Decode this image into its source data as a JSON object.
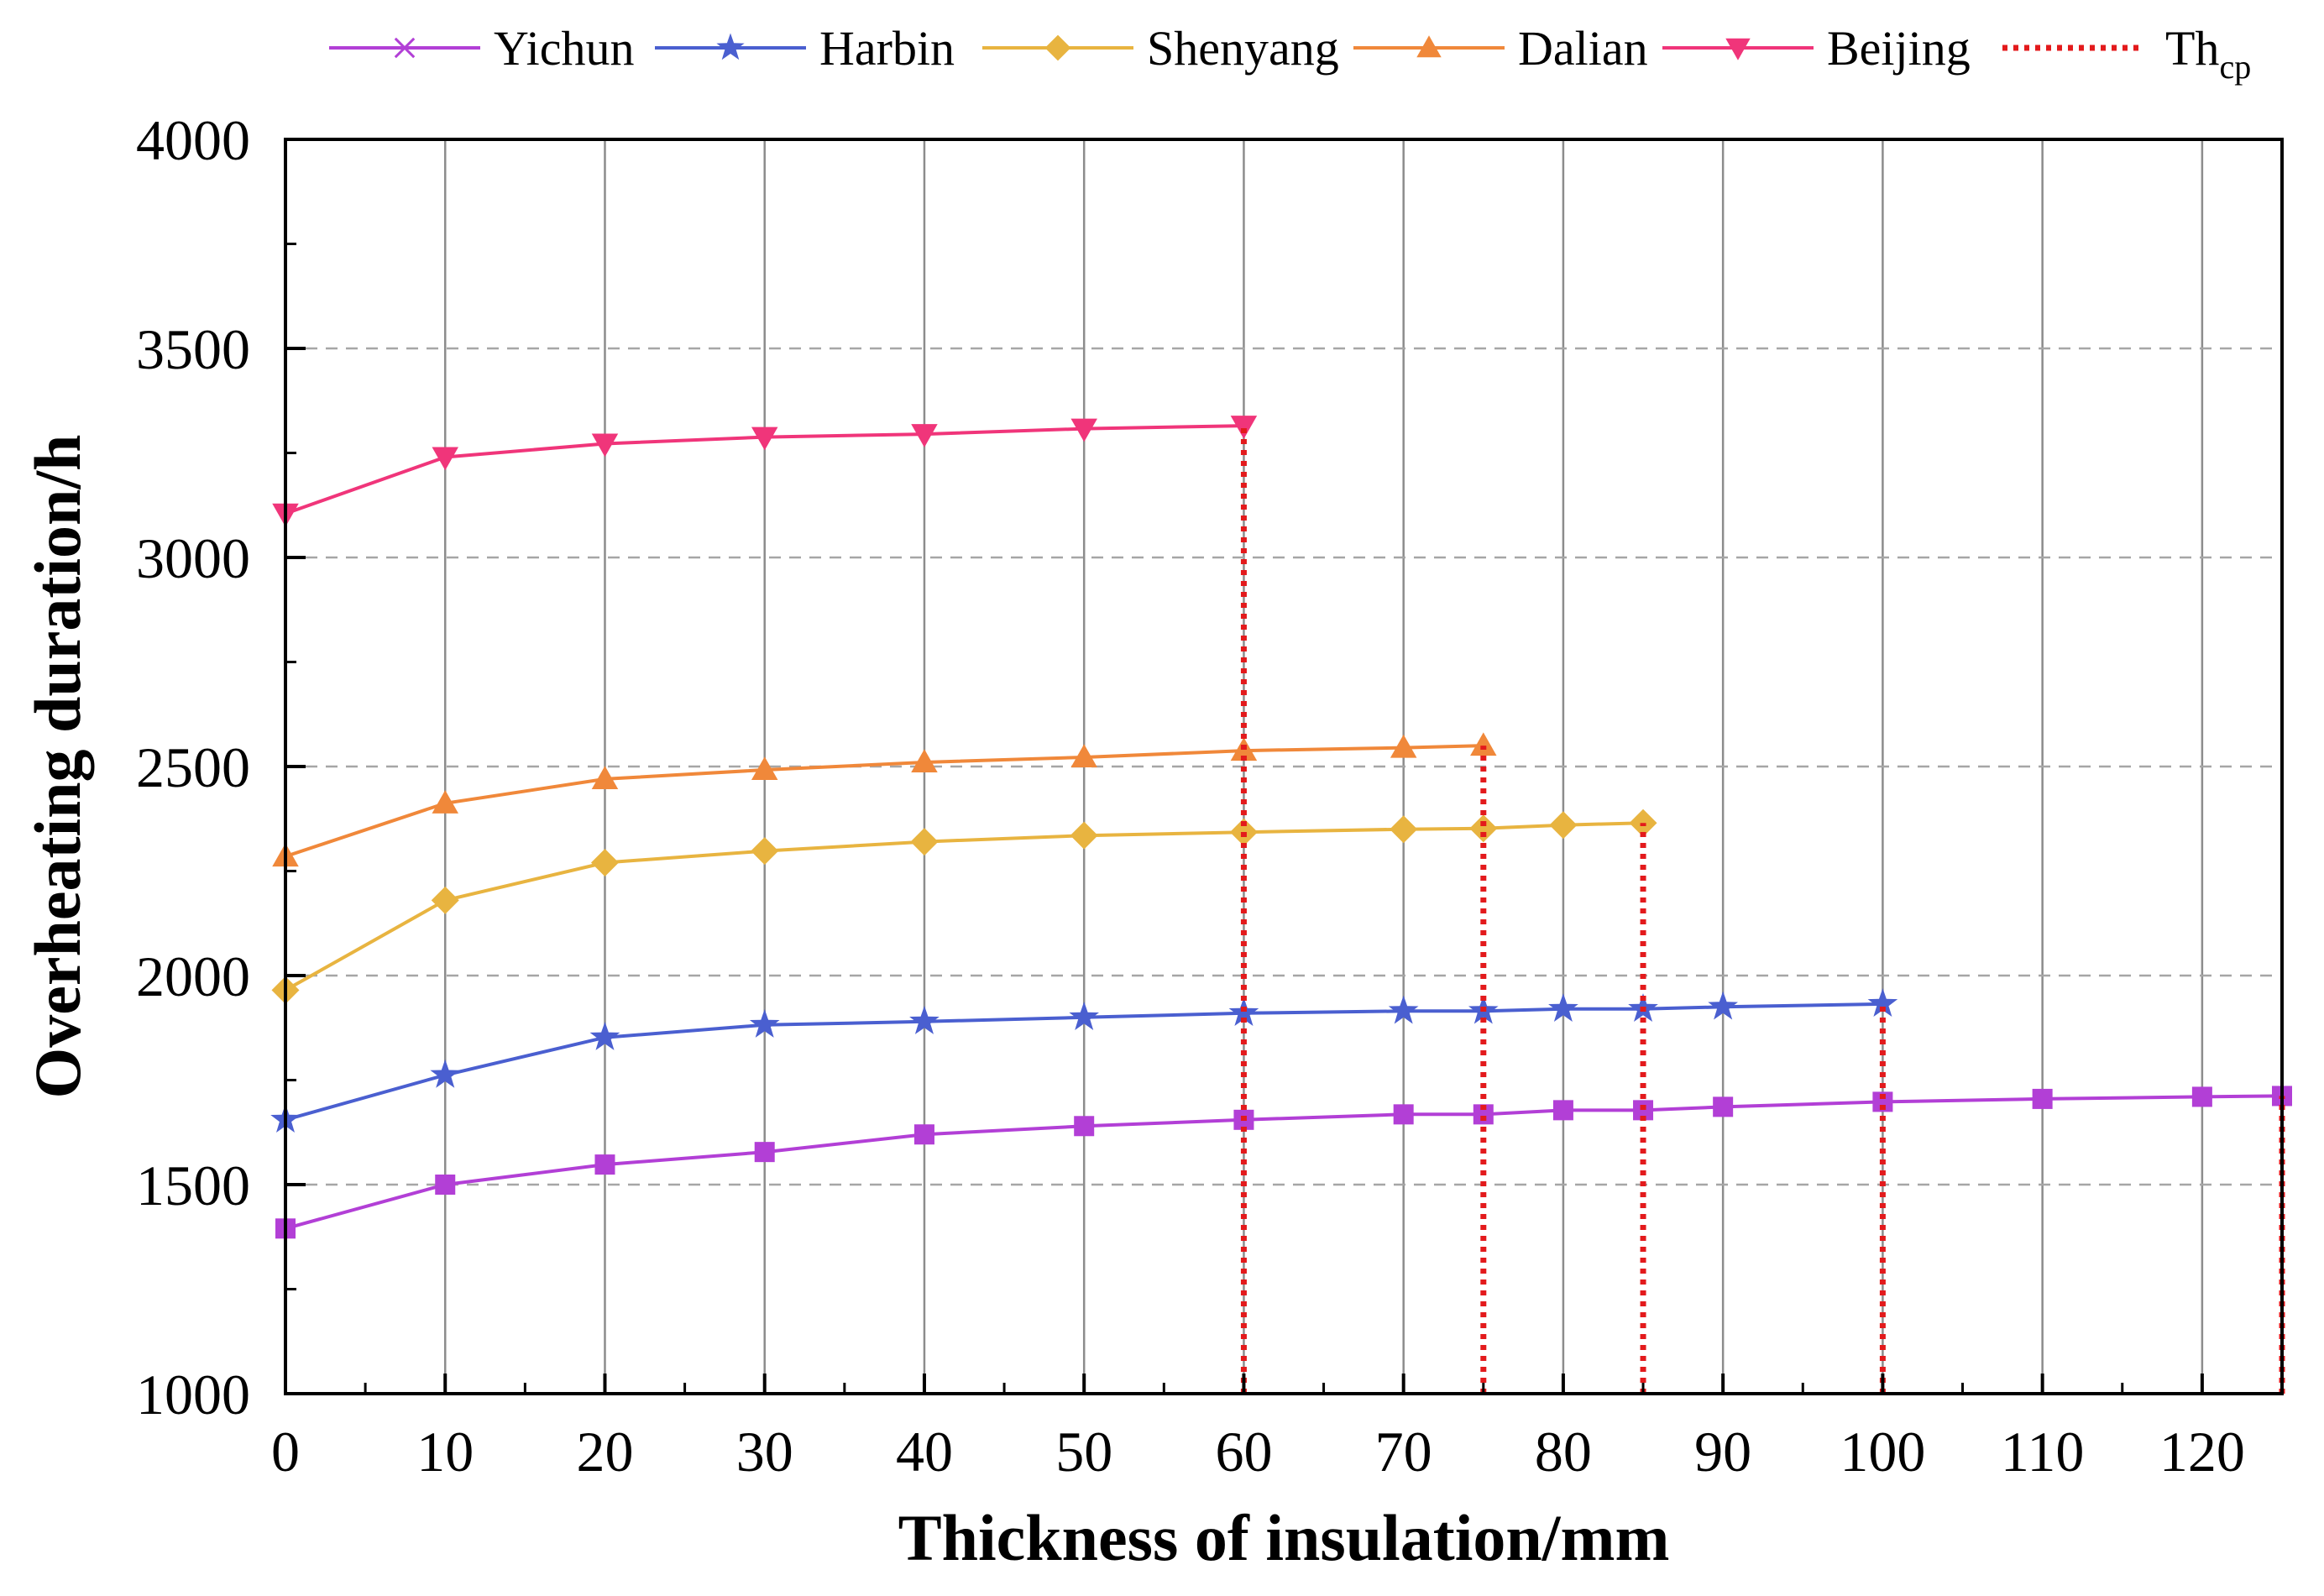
{
  "chart_data": {
    "type": "line",
    "title": "",
    "xlabel": "Thickness of insulation/mm",
    "ylabel": "Overheating duration/h",
    "xlim": [
      0,
      125
    ],
    "ylim": [
      1000,
      4000
    ],
    "x_ticks": [
      0,
      10,
      20,
      30,
      40,
      50,
      60,
      70,
      80,
      90,
      100,
      110,
      120
    ],
    "x_tick_labels": [
      "0",
      "10",
      "20",
      "30",
      "40",
      "50",
      "60",
      "70",
      "80",
      "90",
      "100",
      "110",
      "120"
    ],
    "y_ticks": [
      1000,
      1500,
      2000,
      2500,
      3000,
      3500,
      4000
    ],
    "y_tick_labels": [
      "1000",
      "1500",
      "2000",
      "2500",
      "3000",
      "3500",
      "4000"
    ],
    "vertical_grid": true,
    "horizontal_grid": "dashed",
    "legend_position": "top",
    "series": [
      {
        "name": "Yichun",
        "legend_marker": "x",
        "marker": "square",
        "color": "#b23fd6",
        "x": [
          0,
          10,
          20,
          30,
          40,
          50,
          60,
          70,
          75,
          80,
          85,
          90,
          100,
          110,
          120,
          125
        ],
        "values": [
          1395,
          1500,
          1548,
          1578,
          1620,
          1640,
          1655,
          1668,
          1668,
          1678,
          1678,
          1686,
          1698,
          1705,
          1710,
          1712
        ]
      },
      {
        "name": "Harbin",
        "marker": "star",
        "color": "#4a5fd0",
        "x": [
          0,
          10,
          20,
          30,
          40,
          50,
          60,
          70,
          75,
          80,
          85,
          90,
          100
        ],
        "values": [
          1655,
          1762,
          1852,
          1882,
          1890,
          1900,
          1910,
          1915,
          1915,
          1920,
          1920,
          1925,
          1932
        ]
      },
      {
        "name": "Shenyang",
        "marker": "diamond",
        "color": "#e8b440",
        "x": [
          0,
          10,
          20,
          30,
          40,
          50,
          60,
          70,
          75,
          80,
          85
        ],
        "values": [
          1965,
          2180,
          2270,
          2298,
          2320,
          2335,
          2343,
          2350,
          2352,
          2360,
          2365
        ]
      },
      {
        "name": "Dalian",
        "marker": "triangle-up",
        "color": "#f0883a",
        "x": [
          0,
          10,
          20,
          30,
          40,
          50,
          60,
          70,
          75
        ],
        "values": [
          2285,
          2412,
          2470,
          2492,
          2510,
          2522,
          2538,
          2545,
          2550
        ]
      },
      {
        "name": "Beijing",
        "marker": "triangle-down",
        "color": "#f0357a",
        "x": [
          0,
          10,
          20,
          30,
          40,
          50,
          60
        ],
        "values": [
          3105,
          3240,
          3272,
          3288,
          3295,
          3308,
          3315
        ]
      },
      {
        "name": "Thcp",
        "legend_main": "Th",
        "legend_sub": "cp",
        "style": "dotted",
        "color": "#e31a1c",
        "lines": [
          {
            "x": 60,
            "from": 1000,
            "to": 3315
          },
          {
            "x": 75,
            "from": 1000,
            "to": 2550
          },
          {
            "x": 85,
            "from": 1000,
            "to": 2365
          },
          {
            "x": 100,
            "from": 1000,
            "to": 1932
          },
          {
            "x": 125,
            "from": 1000,
            "to": 1712
          }
        ]
      }
    ]
  }
}
